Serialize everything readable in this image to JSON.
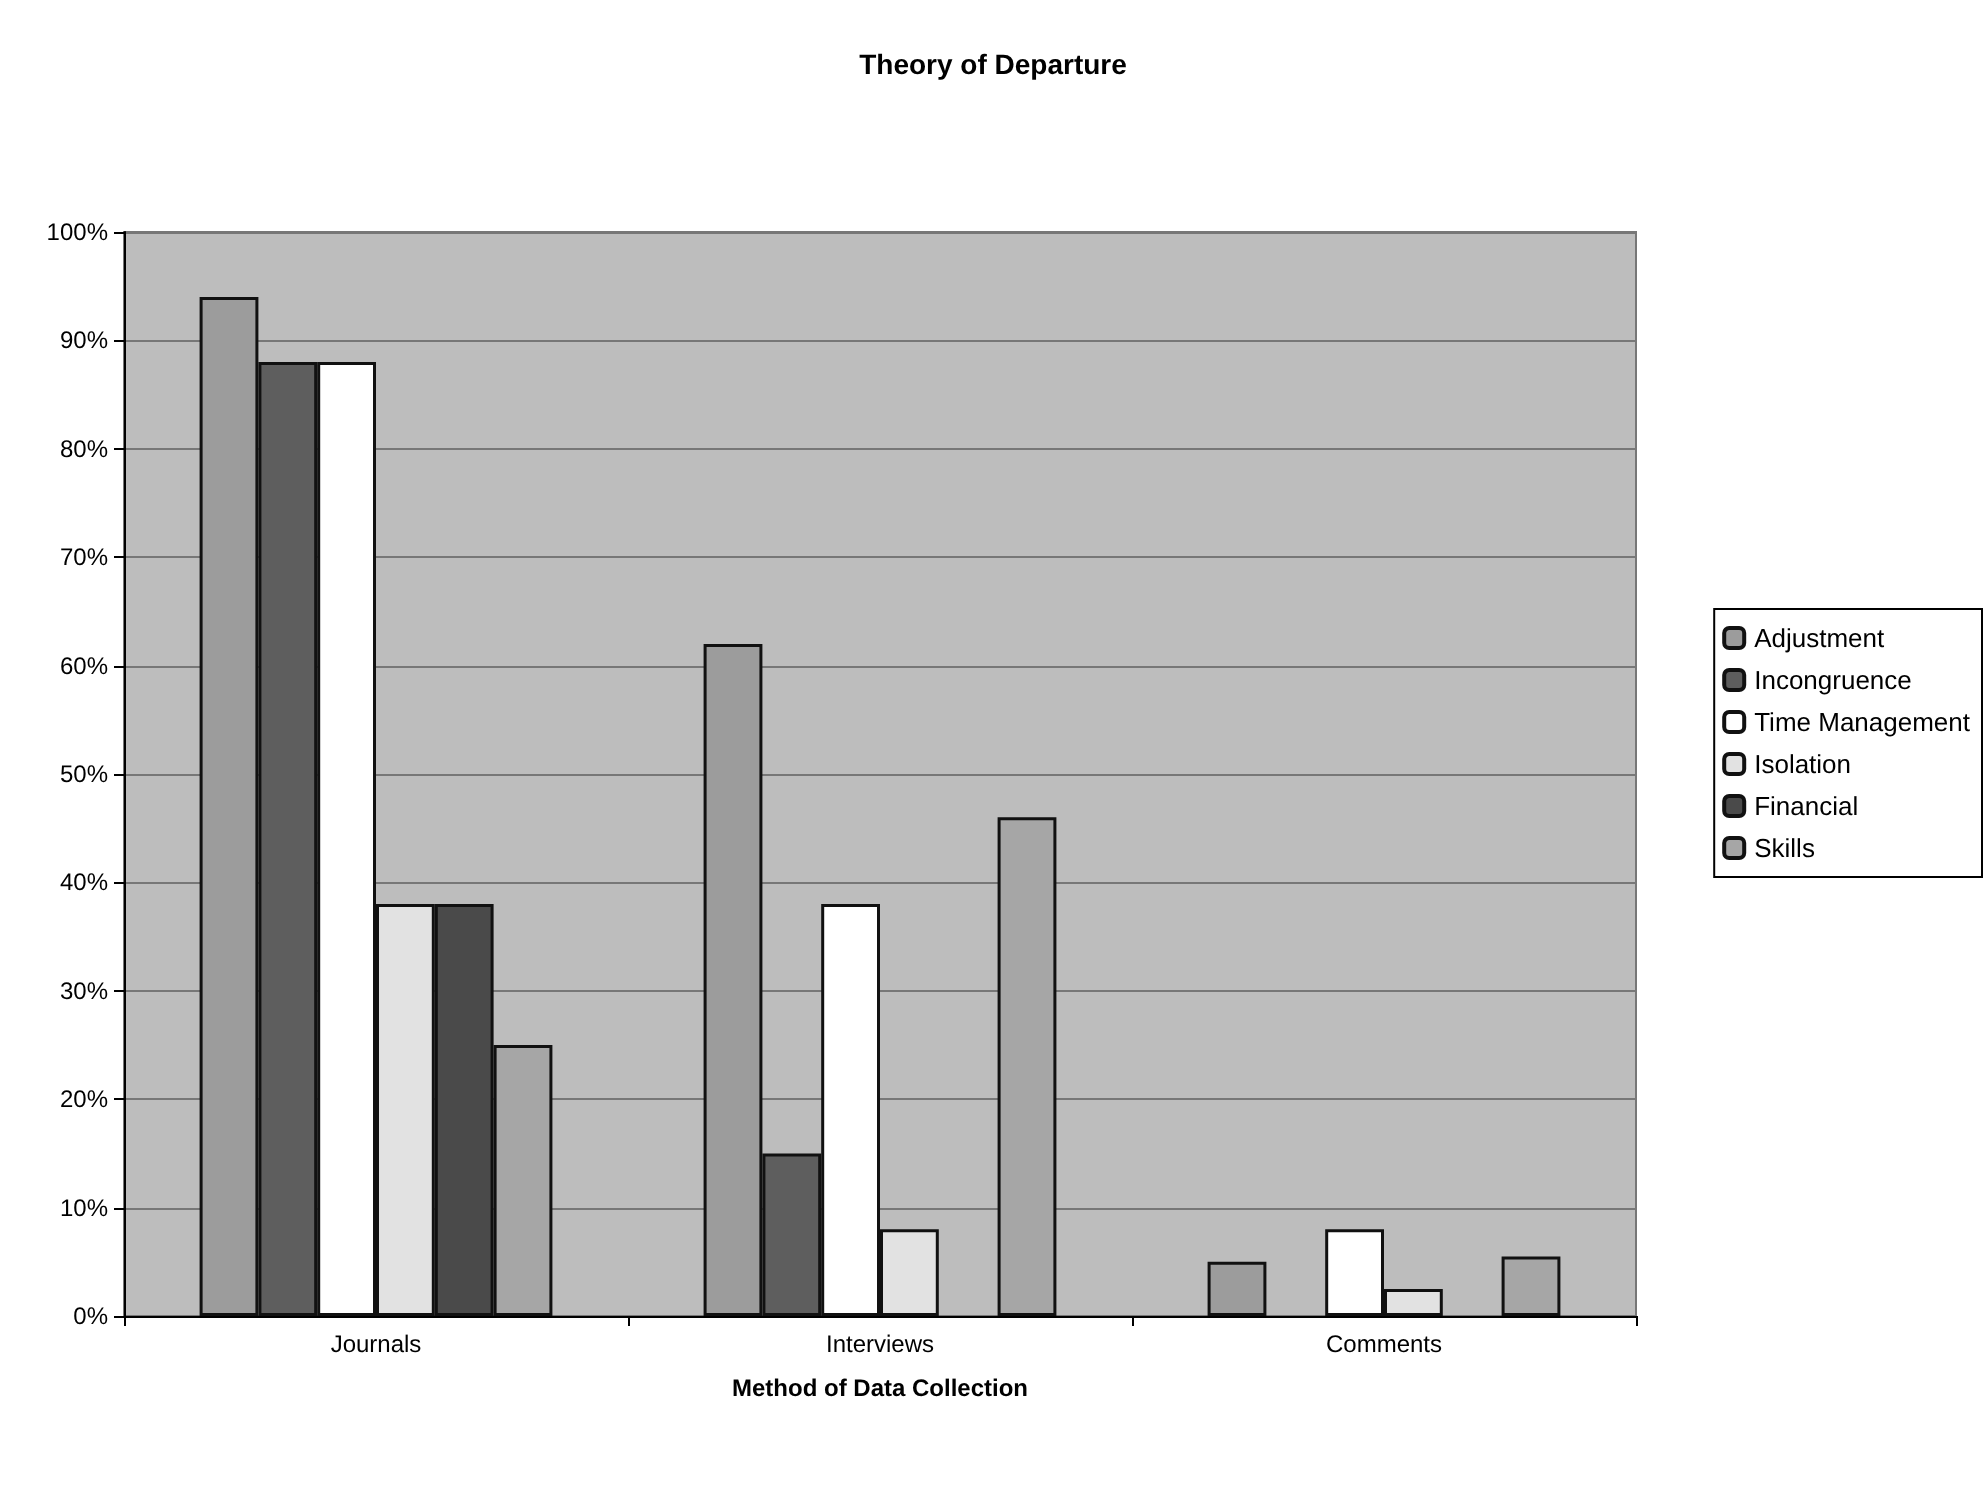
{
  "chart_data": {
    "type": "bar",
    "title": "Theory of Departure",
    "xlabel": "Method of Data Collection",
    "categories": [
      "Journals",
      "Interviews",
      "Comments"
    ],
    "series": [
      {
        "name": "Adjustment",
        "color": "#9c9c9c",
        "values": [
          94,
          62,
          5
        ]
      },
      {
        "name": "Incongruence",
        "color": "#5e5e5e",
        "values": [
          88,
          15,
          0
        ]
      },
      {
        "name": "Time Management",
        "color": "#ffffff",
        "values": [
          88,
          38,
          8
        ]
      },
      {
        "name": "Isolation",
        "color": "#e2e2e2",
        "values": [
          38,
          8,
          2.5
        ]
      },
      {
        "name": "Financial",
        "color": "#4a4a4a",
        "values": [
          38,
          0,
          0
        ]
      },
      {
        "name": "Skills",
        "color": "#a6a6a6",
        "values": [
          25,
          46,
          5.5
        ]
      }
    ],
    "ylim": [
      0,
      100
    ],
    "yticks": [
      {
        "value": 0,
        "label": "0%"
      },
      {
        "value": 10,
        "label": "10%"
      },
      {
        "value": 20,
        "label": "20%"
      },
      {
        "value": 30,
        "label": "30%"
      },
      {
        "value": 40,
        "label": "40%"
      },
      {
        "value": 50,
        "label": "50%"
      },
      {
        "value": 60,
        "label": "60%"
      },
      {
        "value": 70,
        "label": "70%"
      },
      {
        "value": 80,
        "label": "80%"
      },
      {
        "value": 90,
        "label": "90%"
      },
      {
        "value": 100,
        "label": "100%"
      }
    ],
    "grid": "y",
    "legend": "right"
  }
}
